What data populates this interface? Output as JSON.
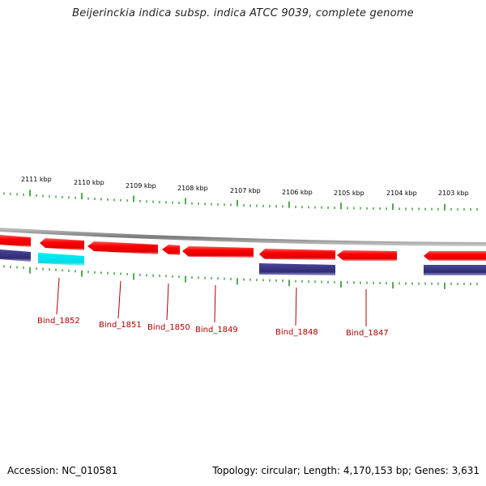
{
  "title": "Beijerinckia indica subsp. indica ATCC 9039, complete genome",
  "footer": {
    "accession_label": "Accession: NC_010581",
    "topology": "Topology: circular",
    "length": "Length: 4,170,153 bp",
    "genes": "Genes: 3,631"
  },
  "colors": {
    "forward_gene": "#ff0000",
    "reverse_gene": "#3a3580",
    "highlight_gene": "#00e5ee",
    "tick": "#1a8a1a",
    "backbone": "#8c8c8c",
    "gene_label": "#b00000"
  },
  "ticks": [
    {
      "label": "2111 kbp"
    },
    {
      "label": "2110 kbp"
    },
    {
      "label": "2109 kbp"
    },
    {
      "label": "2108 kbp"
    },
    {
      "label": "2107 kbp"
    },
    {
      "label": "2106 kbp"
    },
    {
      "label": "2105 kbp"
    },
    {
      "label": "2104 kbp"
    },
    {
      "label": "2103 kbp"
    }
  ],
  "gene_labels": [
    {
      "label": "Bind_1852"
    },
    {
      "label": "Bind_1851"
    },
    {
      "label": "Bind_1850"
    },
    {
      "label": "Bind_1849"
    },
    {
      "label": "Bind_1848"
    },
    {
      "label": "Bind_1847"
    }
  ]
}
